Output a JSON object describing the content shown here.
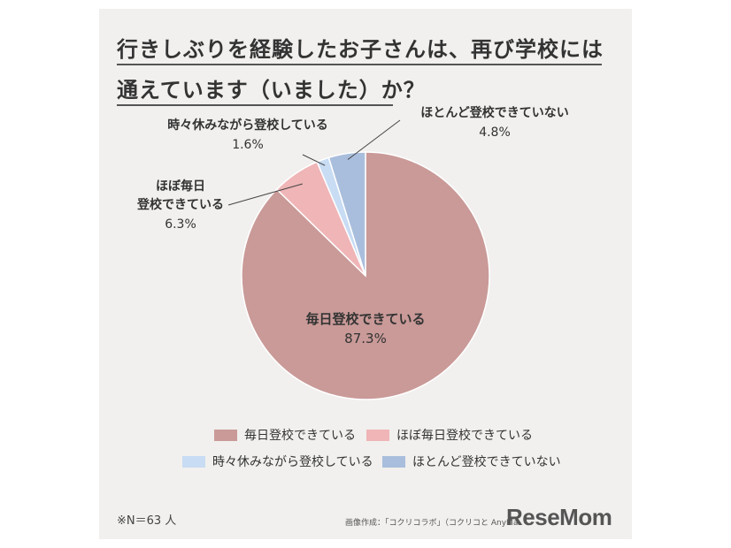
{
  "title_lines": [
    "行きしぶりを経験したお子さんは、再び学校には",
    "通えています（いました）か？"
  ],
  "chart_data": {
    "type": "pie",
    "title": "行きしぶりを経験したお子さんは、再び学校には通えています（いました）か？",
    "categories": [
      "毎日登校できている",
      "ほぼ毎日登校できている",
      "時々休みながら登校している",
      "ほとんど登校できていない"
    ],
    "values": [
      87.3,
      6.3,
      1.6,
      4.8
    ],
    "value_labels": [
      "87.3%",
      "6.3%",
      "1.6%",
      "4.8%"
    ],
    "slice_labels": [
      [
        "毎日登校できている"
      ],
      [
        "ほぼ毎日",
        "登校できている"
      ],
      [
        "時々休みながら登校している"
      ],
      [
        "ほとんど登校できていない"
      ]
    ],
    "colors": [
      "#c99a98",
      "#efb5b7",
      "#c8dcf3",
      "#a9bedc"
    ],
    "legend_position": "bottom"
  },
  "footnote": "※N＝63 人",
  "credit": "画像作成：「コクリコラボ」（コクリコと AnyMa",
  "logo": "ReseMom"
}
